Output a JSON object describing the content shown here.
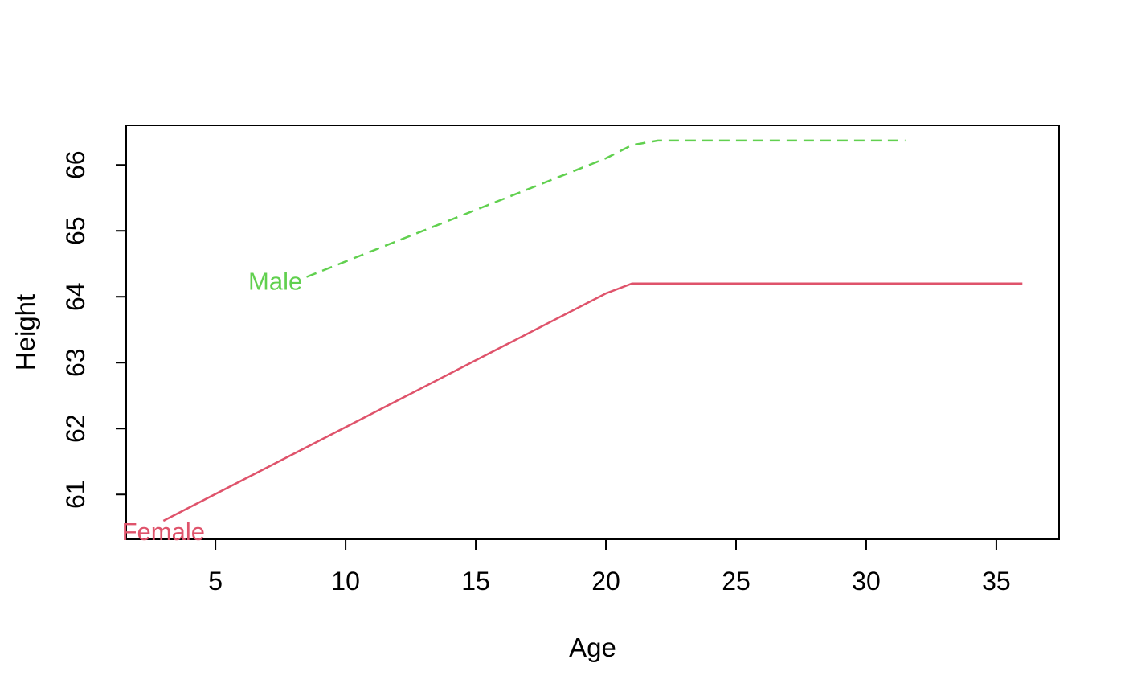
{
  "figure": {
    "background": "#ffffff",
    "axis_color": "#000000",
    "text_color": "#000000"
  },
  "chart_data": {
    "type": "line",
    "title": "",
    "xlabel": "Age",
    "ylabel": "Height",
    "x_ticks": [
      5,
      10,
      15,
      20,
      25,
      30,
      35
    ],
    "y_ticks": [
      61,
      62,
      63,
      64,
      65,
      66
    ],
    "xlim": [
      1.57,
      37.41
    ],
    "ylim": [
      60.32,
      66.6
    ],
    "grid": false,
    "legend_position": "inline-labels",
    "series": [
      {
        "name": "Female",
        "color": "#DF536B",
        "line_style": "solid",
        "line_width": 2.5,
        "points": [
          [
            3,
            60.6
          ],
          [
            20,
            64.05
          ],
          [
            21,
            64.2
          ],
          [
            36,
            64.2
          ]
        ],
        "label": {
          "text": "Female",
          "x": 3.0,
          "y": 60.44
        }
      },
      {
        "name": "Male",
        "color": "#61D04F",
        "line_style": "dashed",
        "line_width": 2.5,
        "points": [
          [
            8.5,
            64.3
          ],
          [
            20,
            66.1
          ],
          [
            21,
            66.3
          ],
          [
            22,
            66.37
          ],
          [
            31.5,
            66.37
          ]
        ],
        "label": {
          "text": "Male",
          "x": 7.3,
          "y": 64.24
        }
      }
    ]
  }
}
